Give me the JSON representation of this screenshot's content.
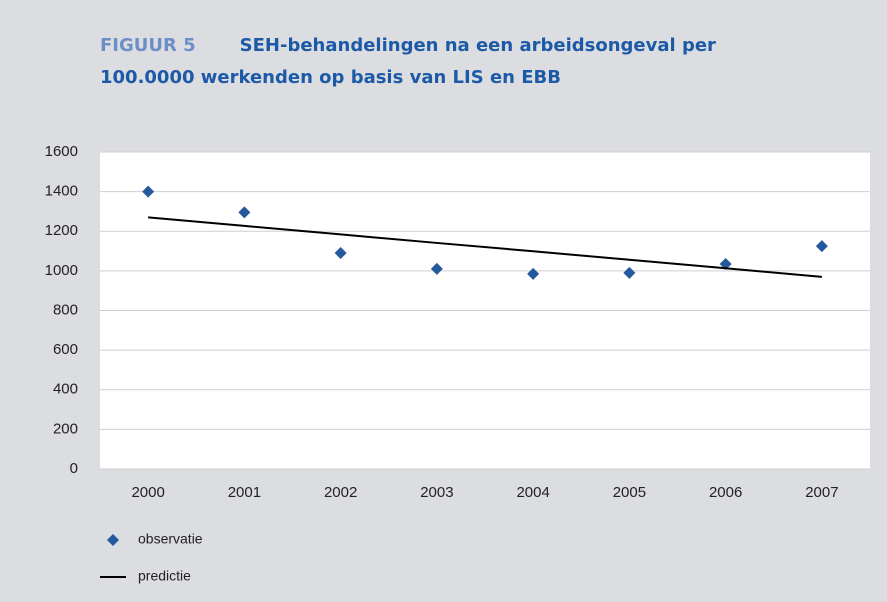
{
  "chart_data": {
    "type": "line",
    "figure_label": "FIGUUR 5",
    "title": "SEH-behandelingen na een arbeidsongeval per 100.0000 werkenden op basis van LIS en EBB",
    "categories": [
      "2000",
      "2001",
      "2002",
      "2003",
      "2004",
      "2005",
      "2006",
      "2007"
    ],
    "series": [
      {
        "name": "observatie",
        "style": "marker",
        "color": "#245a9c",
        "values": [
          1400,
          1295,
          1090,
          1010,
          985,
          990,
          1035,
          1125
        ]
      },
      {
        "name": "predictie",
        "style": "line",
        "color": "#000000",
        "values": [
          1270,
          1227,
          1184,
          1141,
          1099,
          1056,
          1013,
          970
        ]
      }
    ],
    "ylim": [
      0,
      1600
    ],
    "yticks": [
      0,
      200,
      400,
      600,
      800,
      1000,
      1200,
      1400,
      1600
    ],
    "grid": true,
    "legend": "bottom-left"
  }
}
